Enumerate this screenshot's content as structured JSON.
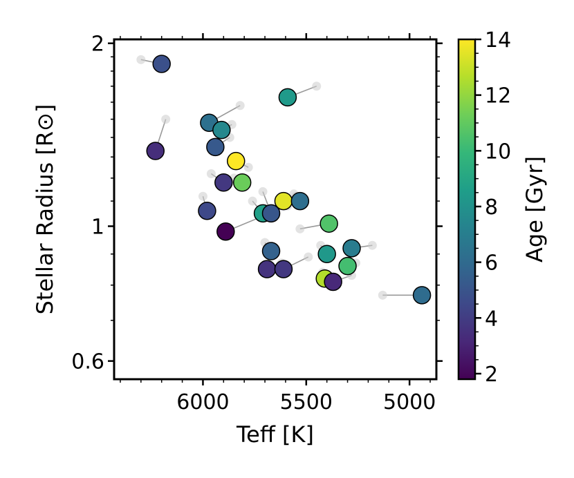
{
  "chart_data": {
    "type": "scatter",
    "xlabel": "Teff [K]",
    "ylabel": "Stellar Radius [R⊙]",
    "xlim": [
      6430,
      4870
    ],
    "ylim": [
      0.56,
      2.03
    ],
    "yscale": "log",
    "xticks": [
      6000,
      5500,
      5000
    ],
    "xtick_labels": [
      "6000",
      "5500",
      "5000"
    ],
    "yticks": [
      2,
      1,
      0.6
    ],
    "ytick_labels": [
      "2",
      "1",
      "0.6"
    ],
    "grid": false,
    "colorbar": {
      "label": "Age [Gyr]",
      "colormap": "viridis",
      "range": [
        1.8,
        14
      ],
      "ticks": [
        2,
        4,
        6,
        8,
        10,
        12,
        14
      ],
      "tick_labels": [
        "2",
        "4",
        "6",
        "8",
        "10",
        "12",
        "14"
      ]
    },
    "colormap_stops": [
      "#440154",
      "#482878",
      "#3e4989",
      "#31688e",
      "#26828e",
      "#1f9e89",
      "#35b779",
      "#6ece58",
      "#b5de2b",
      "#fde725"
    ],
    "ghost_color": "#cccccc",
    "link_color": "#999999",
    "points": [
      {
        "teff": 6200,
        "radius": 1.85,
        "age": 4.8,
        "prev_teff": 6300,
        "prev_radius": 1.88
      },
      {
        "teff": 6230,
        "radius": 1.33,
        "age": 3.4,
        "prev_teff": 6180,
        "prev_radius": 1.5
      },
      {
        "teff": 5590,
        "radius": 1.63,
        "age": 8.4,
        "prev_teff": 5450,
        "prev_radius": 1.7
      },
      {
        "teff": 5970,
        "radius": 1.48,
        "age": 6.3,
        "prev_teff": 5820,
        "prev_radius": 1.58
      },
      {
        "teff": 5910,
        "radius": 1.44,
        "age": 7.5,
        "prev_teff": 5860,
        "prev_radius": 1.47
      },
      {
        "teff": 5940,
        "radius": 1.35,
        "age": 5.2,
        "prev_teff": 5870,
        "prev_radius": 1.4
      },
      {
        "teff": 5840,
        "radius": 1.28,
        "age": 14.0,
        "prev_teff": 5780,
        "prev_radius": 1.25
      },
      {
        "teff": 5900,
        "radius": 1.18,
        "age": 3.8,
        "prev_teff": 5960,
        "prev_radius": 1.22
      },
      {
        "teff": 5810,
        "radius": 1.18,
        "age": 11.2,
        "prev_teff": 5850,
        "prev_radius": 1.2
      },
      {
        "teff": 5980,
        "radius": 1.06,
        "age": 4.5,
        "prev_teff": 6000,
        "prev_radius": 1.12
      },
      {
        "teff": 5610,
        "radius": 1.1,
        "age": 13.5,
        "prev_teff": 5550,
        "prev_radius": 1.12
      },
      {
        "teff": 5530,
        "radius": 1.1,
        "age": 6.2,
        "prev_teff": 5560,
        "prev_radius": 1.13
      },
      {
        "teff": 5710,
        "radius": 1.05,
        "age": 8.7,
        "prev_teff": 5760,
        "prev_radius": 1.1
      },
      {
        "teff": 5670,
        "radius": 1.05,
        "age": 5.1,
        "prev_teff": 5710,
        "prev_radius": 1.14
      },
      {
        "teff": 5890,
        "radius": 0.98,
        "age": 1.8,
        "prev_teff": 5590,
        "prev_radius": 1.08
      },
      {
        "teff": 5390,
        "radius": 1.01,
        "age": 10.6,
        "prev_teff": 5530,
        "prev_radius": 0.99
      },
      {
        "teff": 5670,
        "radius": 0.91,
        "age": 5.6,
        "prev_teff": 5700,
        "prev_radius": 0.94
      },
      {
        "teff": 5400,
        "radius": 0.9,
        "age": 8.3,
        "prev_teff": 5430,
        "prev_radius": 0.93
      },
      {
        "teff": 5280,
        "radius": 0.92,
        "age": 6.9,
        "prev_teff": 5180,
        "prev_radius": 0.93
      },
      {
        "teff": 5300,
        "radius": 0.86,
        "age": 10.3,
        "prev_teff": 5260,
        "prev_radius": 0.87
      },
      {
        "teff": 5690,
        "radius": 0.85,
        "age": 3.6,
        "prev_teff": 5620,
        "prev_radius": 0.87
      },
      {
        "teff": 5610,
        "radius": 0.85,
        "age": 3.8,
        "prev_teff": 5490,
        "prev_radius": 0.89
      },
      {
        "teff": 5410,
        "radius": 0.82,
        "age": 12.6,
        "prev_teff": 5420,
        "prev_radius": 0.84
      },
      {
        "teff": 5370,
        "radius": 0.81,
        "age": 3.2,
        "prev_teff": 5280,
        "prev_radius": 0.83
      },
      {
        "teff": 4940,
        "radius": 0.77,
        "age": 6.1,
        "prev_teff": 5130,
        "prev_radius": 0.77
      }
    ]
  }
}
